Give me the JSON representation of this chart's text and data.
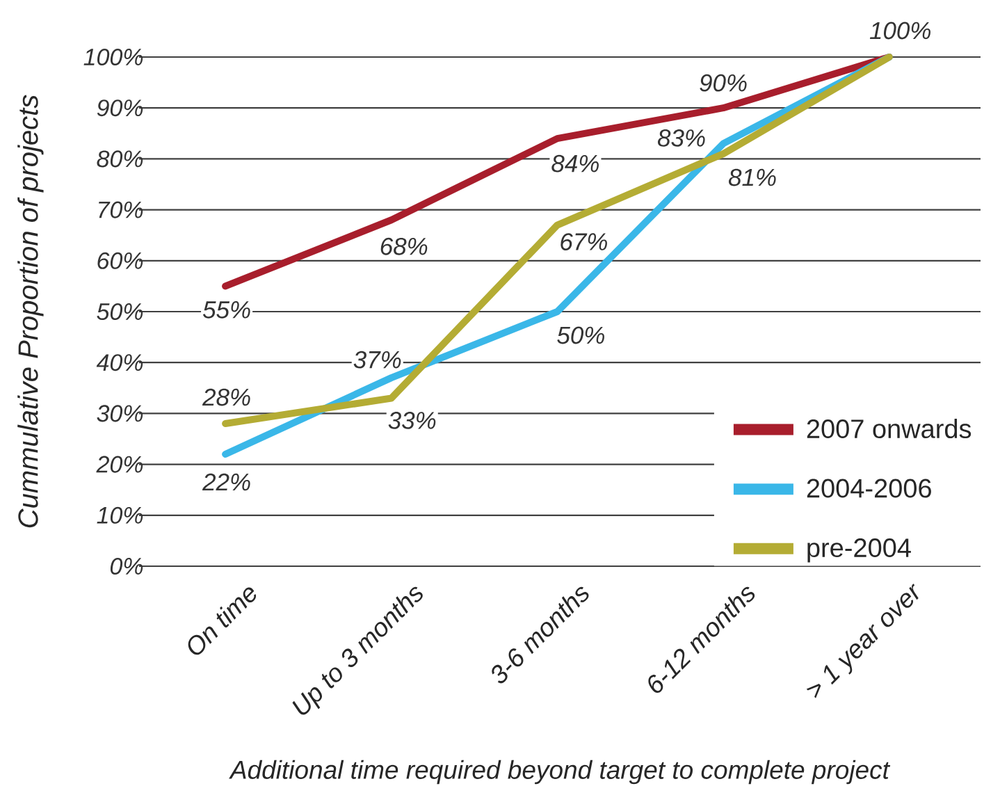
{
  "chart_data": {
    "type": "line",
    "xlabel": "Additional time required beyond target to complete project",
    "ylabel": "Cummulative Proportion of projects",
    "categories": [
      "On time",
      "Up to 3 months",
      "3-6 months",
      "6-12 months",
      "> 1 year over"
    ],
    "series": [
      {
        "name": "2007 onwards",
        "color": "#a81e2c",
        "values": [
          55,
          68,
          84,
          90,
          100
        ],
        "value_labels": [
          "55%",
          "68%",
          "84%",
          "90%",
          "100%"
        ]
      },
      {
        "name": "2004-2006",
        "color": "#3ab7e8",
        "values": [
          22,
          37,
          50,
          83,
          100
        ],
        "value_labels": [
          "22%",
          "37%",
          "50%",
          "83%",
          null
        ]
      },
      {
        "name": "pre-2004",
        "color": "#b4ac34",
        "values": [
          28,
          33,
          67,
          81,
          100
        ],
        "value_labels": [
          "28%",
          "33%",
          "67%",
          "81%",
          null
        ]
      }
    ],
    "ylim": [
      0,
      100
    ],
    "yticks": [
      {
        "value": 0,
        "label": "0%"
      },
      {
        "value": 10,
        "label": "10%"
      },
      {
        "value": 20,
        "label": "20%"
      },
      {
        "value": 30,
        "label": "30%"
      },
      {
        "value": 40,
        "label": "40%"
      },
      {
        "value": 50,
        "label": "50%"
      },
      {
        "value": 60,
        "label": "60%"
      },
      {
        "value": 70,
        "label": "70%"
      },
      {
        "value": 80,
        "label": "80%"
      },
      {
        "value": 90,
        "label": "90%"
      },
      {
        "value": 100,
        "label": "100%"
      }
    ],
    "grid": "y",
    "legend": "bottom right"
  }
}
